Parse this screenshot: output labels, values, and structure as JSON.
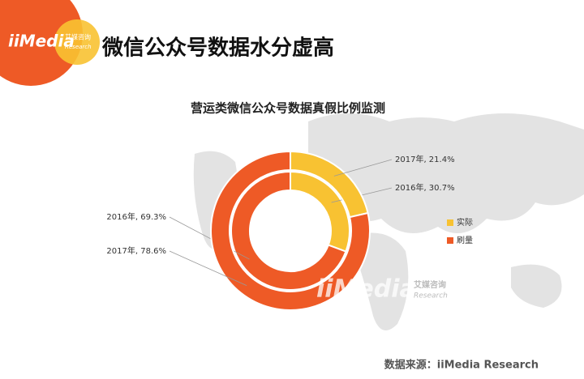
{
  "header": {
    "logo": "iiMedia",
    "logo_cn": "艾媒咨询",
    "logo_en": "Research",
    "title": "微信公众号数据水分虚高"
  },
  "chart_data": {
    "type": "nested-donut",
    "title": "营运类微信公众号数据真假比例监测",
    "series": [
      {
        "name": "实际",
        "color": "#f8c232",
        "values": [
          30.7,
          21.4
        ],
        "value_labels": [
          "2016年, 30.7%",
          "2017年, 21.4%"
        ]
      },
      {
        "name": "刷量",
        "color": "#ee5a26",
        "values": [
          69.3,
          78.6
        ],
        "value_labels": [
          "2016年, 69.3%",
          "2017年, 78.6%"
        ]
      }
    ]
  },
  "watermark": {
    "logo": "iiMedia",
    "logo_cn": "艾媒咨询",
    "logo_en": "Research"
  },
  "footer": {
    "source": "数据来源：iiMedia Research"
  }
}
